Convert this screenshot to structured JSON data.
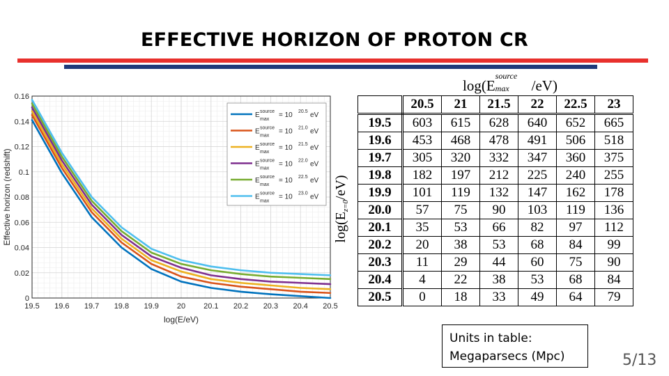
{
  "slide": {
    "title": "EFFECTIVE HORIZON OF PROTON CR",
    "units_line1": "Units in table:",
    "units_line2": "Megaparsecs (Mpc)",
    "page_number": "5/13",
    "colors": {
      "red_rule": "#e8302c",
      "blue_rule": "#1f3a7a"
    }
  },
  "chart_data": [
    {
      "type": "line",
      "title": "",
      "xlabel": "log(E/eV)",
      "ylabel": "Effective horizon (redshift)",
      "xlim": [
        19.5,
        20.5
      ],
      "ylim": [
        0,
        0.16
      ],
      "xticks": [
        "19.5",
        "19.6",
        "19.7",
        "19.8",
        "19.9",
        "20",
        "20.1",
        "20.2",
        "20.3",
        "20.4",
        "20.5"
      ],
      "yticks": [
        "0",
        "0.02",
        "0.04",
        "0.06",
        "0.08",
        "0.1",
        "0.12",
        "0.14",
        "0.16"
      ],
      "grid": true,
      "legend_position": "top-right",
      "x": [
        19.5,
        19.6,
        19.7,
        19.8,
        19.9,
        20.0,
        20.1,
        20.2,
        20.3,
        20.4,
        20.5
      ],
      "series": [
        {
          "name": "E_max^source = 10^20.5 eV",
          "legend_main": "E",
          "legend_sup": "source",
          "legend_sub": "max",
          "legend_eq": "= 10",
          "legend_exp": "20.5",
          "legend_unit": "eV",
          "color": "#0072bd",
          "values": [
            0.141,
            0.099,
            0.064,
            0.04,
            0.023,
            0.013,
            0.008,
            0.005,
            0.003,
            0.0015,
            0.0
          ]
        },
        {
          "name": "E_max^source = 10^21.0 eV",
          "legend_main": "E",
          "legend_sup": "source",
          "legend_sub": "max",
          "legend_eq": "= 10",
          "legend_exp": "21.0",
          "legend_unit": "eV",
          "color": "#d95319",
          "values": [
            0.145,
            0.103,
            0.068,
            0.044,
            0.027,
            0.017,
            0.012,
            0.009,
            0.007,
            0.005,
            0.004
          ]
        },
        {
          "name": "E_max^source = 10^21.5 eV",
          "legend_main": "E",
          "legend_sup": "source",
          "legend_sub": "max",
          "legend_eq": "= 10",
          "legend_exp": "21.5",
          "legend_unit": "eV",
          "color": "#edb120",
          "values": [
            0.148,
            0.106,
            0.071,
            0.047,
            0.03,
            0.021,
            0.015,
            0.012,
            0.01,
            0.008,
            0.007
          ]
        },
        {
          "name": "E_max^source = 10^22.0 eV",
          "legend_main": "E",
          "legend_sup": "source",
          "legend_sub": "max",
          "legend_eq": "= 10",
          "legend_exp": "22.0",
          "legend_unit": "eV",
          "color": "#7e2f8e",
          "values": [
            0.151,
            0.109,
            0.074,
            0.05,
            0.033,
            0.024,
            0.018,
            0.015,
            0.013,
            0.012,
            0.011
          ]
        },
        {
          "name": "E_max^source = 10^22.5 eV",
          "legend_main": "E",
          "legend_sup": "source",
          "legend_sub": "max",
          "legend_eq": "= 10",
          "legend_exp": "22.5",
          "legend_unit": "eV",
          "color": "#77ac30",
          "values": [
            0.154,
            0.112,
            0.077,
            0.053,
            0.036,
            0.027,
            0.022,
            0.019,
            0.017,
            0.016,
            0.015
          ]
        },
        {
          "name": "E_max^source = 10^23.0 eV",
          "legend_main": "E",
          "legend_sup": "source",
          "legend_sub": "max",
          "legend_eq": "= 10",
          "legend_exp": "23.0",
          "legend_unit": "eV",
          "color": "#4dbeee",
          "values": [
            0.157,
            0.115,
            0.08,
            0.056,
            0.039,
            0.03,
            0.025,
            0.022,
            0.02,
            0.019,
            0.018
          ]
        }
      ]
    },
    {
      "type": "table",
      "title_base": "log(E",
      "title_sup": "source",
      "title_sub": "max",
      "title_tail": "/eV)",
      "ylabel_base": "log(E",
      "ylabel_sub": "z=0",
      "ylabel_tail": "/eV)",
      "columns": [
        "20.5",
        "21",
        "21.5",
        "22",
        "22.5",
        "23"
      ],
      "rows": [
        {
          "label": "19.5",
          "values": [
            "603",
            "615",
            "628",
            "640",
            "652",
            "665"
          ]
        },
        {
          "label": "19.6",
          "values": [
            "453",
            "468",
            "478",
            "491",
            "506",
            "518"
          ]
        },
        {
          "label": "19.7",
          "values": [
            "305",
            "320",
            "332",
            "347",
            "360",
            "375"
          ]
        },
        {
          "label": "19.8",
          "values": [
            "182",
            "197",
            "212",
            "225",
            "240",
            "255"
          ]
        },
        {
          "label": "19.9",
          "values": [
            "101",
            "119",
            "132",
            "147",
            "162",
            "178"
          ]
        },
        {
          "label": "20.0",
          "values": [
            "57",
            "75",
            "90",
            "103",
            "119",
            "136"
          ]
        },
        {
          "label": "20.1",
          "values": [
            "35",
            "53",
            "66",
            "82",
            "97",
            "112"
          ]
        },
        {
          "label": "20.2",
          "values": [
            "20",
            "38",
            "53",
            "68",
            "84",
            "99"
          ]
        },
        {
          "label": "20.3",
          "values": [
            "11",
            "29",
            "44",
            "60",
            "75",
            "90"
          ]
        },
        {
          "label": "20.4",
          "values": [
            "4",
            "22",
            "38",
            "53",
            "68",
            "84"
          ]
        },
        {
          "label": "20.5",
          "values": [
            "0",
            "18",
            "33",
            "49",
            "64",
            "79"
          ]
        }
      ]
    }
  ]
}
